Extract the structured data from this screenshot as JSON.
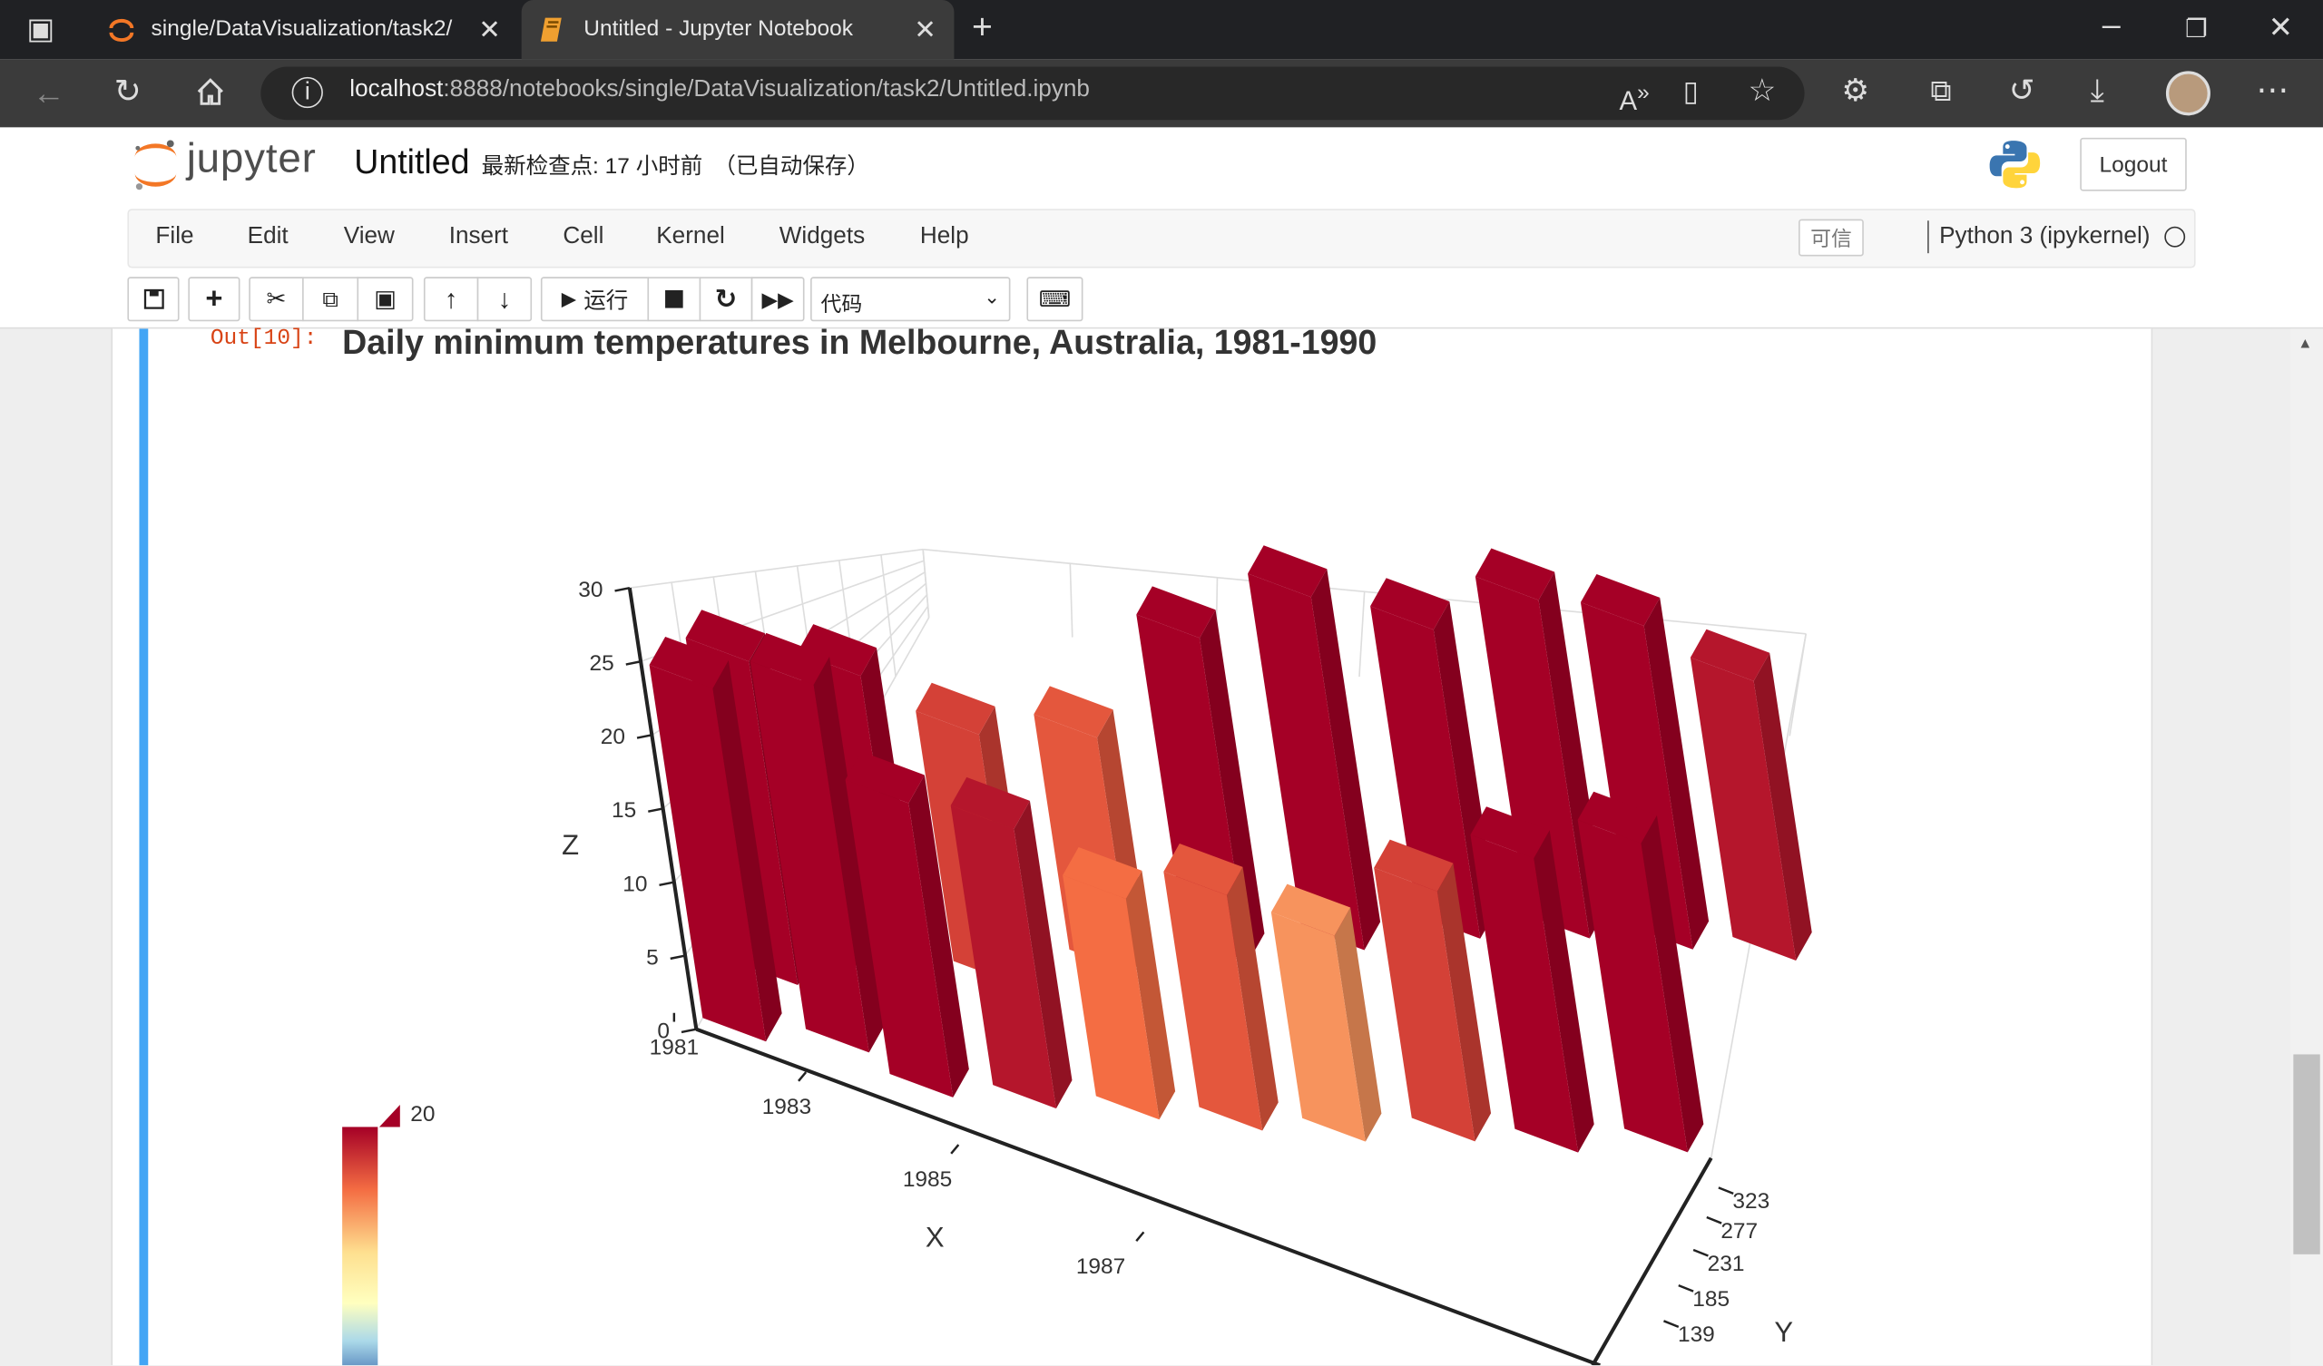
{
  "browser": {
    "tabs": [
      {
        "title": "single/DataVisualization/task2/",
        "icon": "jupyter-icon"
      },
      {
        "title": "Untitled - Jupyter Notebook",
        "icon": "notebook-icon",
        "active": true
      }
    ],
    "url_host": "localhost",
    "url_rest": ":8888/notebooks/single/DataVisualization/task2/Untitled.ipynb"
  },
  "jupyter": {
    "logo_text": "jupyter",
    "notebook_name": "Untitled",
    "checkpoint": "最新检查点: 17 小时前　（已自动保存）",
    "logout_label": "Logout",
    "menu": [
      "File",
      "Edit",
      "View",
      "Insert",
      "Cell",
      "Kernel",
      "Widgets",
      "Help"
    ],
    "trusted_label": "可信",
    "kernel_label": "Python 3 (ipykernel)",
    "run_label": "运行",
    "cell_type": "代码"
  },
  "cell": {
    "prompt": "Out[10]:",
    "title": "Daily minimum temperatures in Melbourne, Australia, 1981-1990"
  },
  "colors": {
    "accent": "#42a5f5",
    "prompt": "#d84315",
    "bar_high": "#a50026",
    "bar_low": "#fee090"
  },
  "chart_data": {
    "type": "bar3d",
    "title": "Daily minimum temperatures in Melbourne, Australia, 1981-1990",
    "xlabel": "X",
    "ylabel": "Y",
    "zlabel": "Z",
    "x_ticks": [
      "1981",
      "1983",
      "1985",
      "1987"
    ],
    "y_ticks": [
      "139",
      "185",
      "231",
      "277",
      "323"
    ],
    "z_ticks": [
      "0",
      "5",
      "10",
      "15",
      "20",
      "25",
      "30"
    ],
    "zlim": [
      0,
      30
    ],
    "visualmap_max": "20",
    "grid": true,
    "bars": [
      {
        "x": 1981,
        "y": 10,
        "z": 24
      },
      {
        "x": 1981,
        "y": 60,
        "z": 22
      },
      {
        "x": 1982,
        "y": 30,
        "z": 25
      },
      {
        "x": 1982,
        "y": 90,
        "z": 21
      },
      {
        "x": 1983,
        "y": 20,
        "z": 20
      },
      {
        "x": 1983,
        "y": 120,
        "z": 17
      },
      {
        "x": 1984,
        "y": 40,
        "z": 19
      },
      {
        "x": 1984,
        "y": 160,
        "z": 16
      },
      {
        "x": 1985,
        "y": 60,
        "z": 15
      },
      {
        "x": 1985,
        "y": 200,
        "z": 22
      },
      {
        "x": 1986,
        "y": 80,
        "z": 16
      },
      {
        "x": 1986,
        "y": 240,
        "z": 24
      },
      {
        "x": 1987,
        "y": 100,
        "z": 14
      },
      {
        "x": 1987,
        "y": 280,
        "z": 21
      },
      {
        "x": 1988,
        "y": 130,
        "z": 17
      },
      {
        "x": 1988,
        "y": 310,
        "z": 23
      },
      {
        "x": 1989,
        "y": 150,
        "z": 20
      },
      {
        "x": 1989,
        "y": 330,
        "z": 22
      },
      {
        "x": 1990,
        "y": 180,
        "z": 21
      },
      {
        "x": 1990,
        "y": 350,
        "z": 19
      }
    ]
  }
}
